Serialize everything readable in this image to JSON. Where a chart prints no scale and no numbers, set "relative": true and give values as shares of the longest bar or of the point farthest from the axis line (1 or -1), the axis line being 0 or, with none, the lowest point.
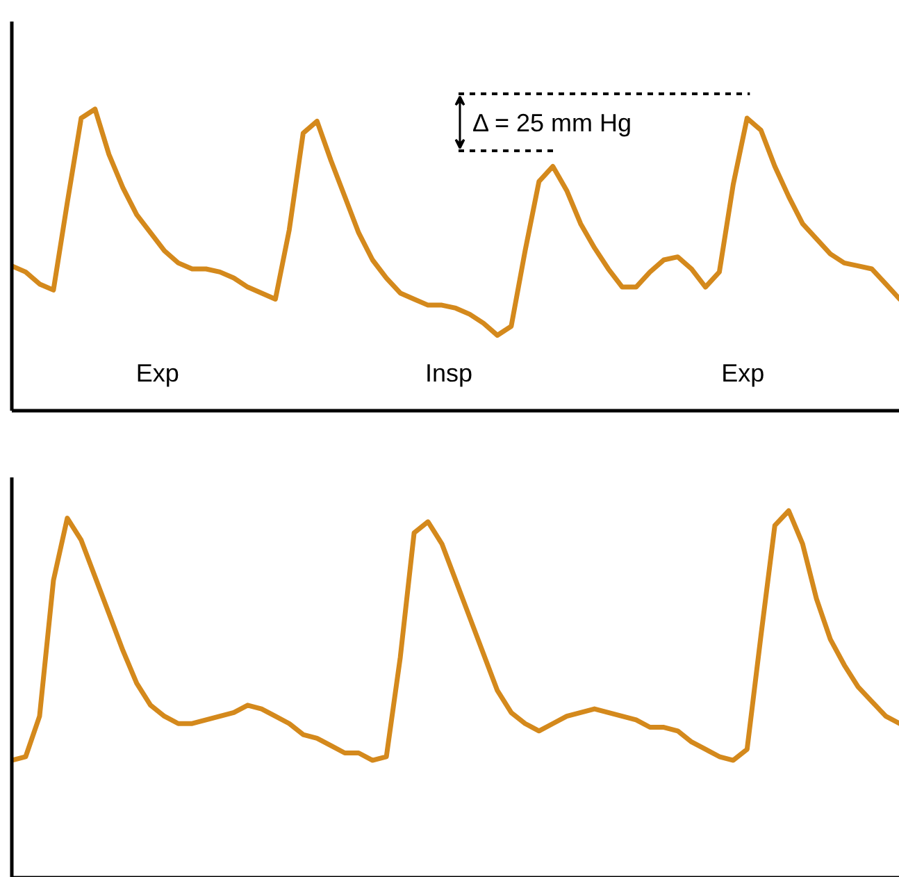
{
  "chart_data": [
    {
      "type": "line",
      "relative": true,
      "categories": [
        null,
        null,
        null,
        null,
        null,
        null,
        null,
        null,
        null,
        null,
        null,
        null,
        null,
        null,
        null,
        null,
        null,
        null,
        null,
        null,
        null,
        null,
        null,
        null,
        null,
        null,
        null,
        null,
        null,
        null,
        null,
        null,
        null,
        null,
        null,
        null,
        null,
        null,
        null,
        null,
        null,
        null,
        null,
        null,
        null,
        null,
        null,
        null,
        null,
        null,
        null,
        null,
        null,
        null,
        null,
        null,
        null,
        null,
        null,
        null,
        null,
        null,
        null,
        null,
        null
      ],
      "series": [
        {
          "color": "#d4891c",
          "values": [
            0.48,
            0.46,
            0.42,
            0.4,
            0.69,
            0.97,
            1.0,
            0.85,
            0.74,
            0.65,
            0.59,
            0.53,
            0.49,
            0.47,
            0.47,
            0.46,
            0.44,
            0.41,
            0.39,
            0.37,
            0.6,
            0.92,
            0.96,
            0.83,
            0.71,
            0.59,
            0.5,
            0.44,
            0.39,
            0.37,
            0.35,
            0.35,
            0.34,
            0.32,
            0.29,
            0.25,
            0.28,
            0.53,
            0.76,
            0.81,
            0.73,
            0.62,
            0.54,
            0.47,
            0.41,
            0.41,
            0.46,
            0.5,
            0.51,
            0.47,
            0.41,
            0.46,
            0.75,
            0.97,
            0.93,
            0.81,
            0.71,
            0.62,
            0.57,
            0.52,
            0.49,
            0.48,
            0.47,
            0.42,
            0.37
          ]
        }
      ],
      "annotations": [
        "Δ = 25 mm Hg",
        "Exp",
        "Insp",
        "Exp"
      ]
    },
    {
      "type": "line",
      "relative": true,
      "categories": [
        null,
        null,
        null,
        null,
        null,
        null,
        null,
        null,
        null,
        null,
        null,
        null,
        null,
        null,
        null,
        null,
        null,
        null,
        null,
        null,
        null,
        null,
        null,
        null,
        null,
        null,
        null,
        null,
        null,
        null,
        null,
        null,
        null,
        null,
        null,
        null,
        null,
        null,
        null,
        null,
        null,
        null,
        null,
        null,
        null,
        null,
        null,
        null,
        null,
        null,
        null,
        null,
        null,
        null,
        null,
        null,
        null,
        null,
        null,
        null,
        null,
        null,
        null,
        null,
        null
      ],
      "series": [
        {
          "color": "#d4891c",
          "values": [
            0.32,
            0.33,
            0.44,
            0.81,
            0.98,
            0.92,
            0.82,
            0.72,
            0.62,
            0.53,
            0.47,
            0.44,
            0.42,
            0.42,
            0.43,
            0.44,
            0.45,
            0.47,
            0.46,
            0.44,
            0.42,
            0.39,
            0.38,
            0.36,
            0.34,
            0.34,
            0.32,
            0.33,
            0.6,
            0.94,
            0.97,
            0.91,
            0.81,
            0.71,
            0.61,
            0.51,
            0.45,
            0.42,
            0.4,
            0.42,
            0.44,
            0.45,
            0.46,
            0.45,
            0.44,
            0.43,
            0.41,
            0.41,
            0.4,
            0.37,
            0.35,
            0.33,
            0.32,
            0.35,
            0.66,
            0.96,
            1.0,
            0.91,
            0.76,
            0.65,
            0.58,
            0.52,
            0.48,
            0.44,
            0.42
          ]
        }
      ]
    }
  ]
}
